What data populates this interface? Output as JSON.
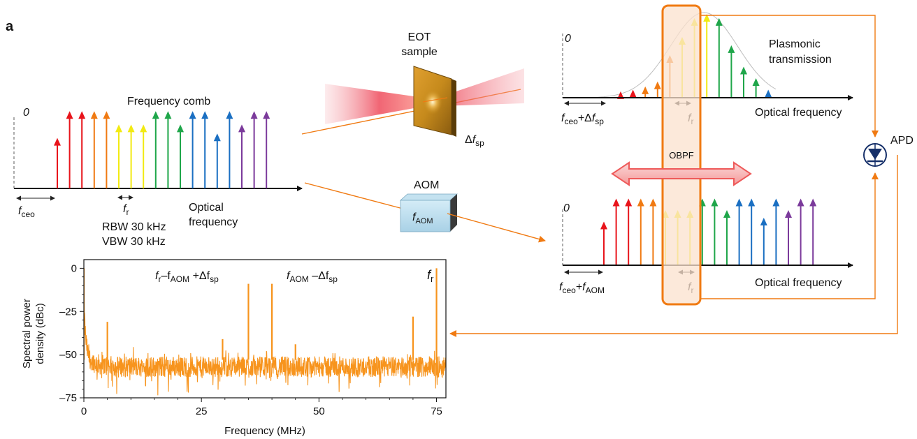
{
  "panel_label": "a",
  "comb": {
    "title": "Frequency comb",
    "zero": "0",
    "fceo_f": "f",
    "fceo_sub": "ceo",
    "fr_f": "f",
    "fr_sub": "r",
    "axis_line1": "Optical",
    "axis_line2": "frequency",
    "colors": [
      "#e8141b",
      "#e8141b",
      "#e8141b",
      "#f07a12",
      "#f07a12",
      "#f2ea12",
      "#f2ea12",
      "#f2ea12",
      "#1fa64a",
      "#1fa64a",
      "#1fa64a",
      "#1a6fc2",
      "#1a6fc2",
      "#1a6fc2",
      "#1a6fc2",
      "#7b3a9b",
      "#7b3a9b",
      "#7b3a9b"
    ],
    "levels": [
      0.55,
      0.85,
      0.85,
      0.85,
      0.85,
      0.7,
      0.7,
      0.7,
      0.85,
      0.85,
      0.7,
      0.85,
      0.85,
      0.6,
      0.85,
      0.7,
      0.85,
      0.85
    ]
  },
  "eot": {
    "line1": "EOT",
    "line2": "sample",
    "delta": "Δ",
    "f": "f",
    "sub": "sp"
  },
  "aom": {
    "title": "AOM",
    "f": "f",
    "sub": "AOM"
  },
  "plasmonic": {
    "zero": "0",
    "line1": "Plasmonic",
    "line2": "transmission",
    "axis": "Optical frequency",
    "fceo": "f",
    "fceo_sub": "ceo",
    "plus": "+Δ",
    "fsp": "f",
    "fsp_sub": "sp",
    "fr_f": "f",
    "fr_sub": "r",
    "levels": [
      0.06,
      0.08,
      0.12,
      0.18,
      0.5,
      0.72,
      0.95,
      1.0,
      0.95,
      0.62,
      0.36,
      0.22,
      0.08
    ],
    "colors": [
      "#e8141b",
      "#e8141b",
      "#f07a12",
      "#f07a12",
      "#f07a12",
      "#f2ea12",
      "#f2ea12",
      "#f2ea12",
      "#1fa64a",
      "#1fa64a",
      "#1fa64a",
      "#1fa64a",
      "#1a6fc2"
    ]
  },
  "obpf": "OBPF",
  "shifted": {
    "zero": "0",
    "axis": "Optical frequency",
    "fceo": "f",
    "fceo_sub": "ceo",
    "plus": "+",
    "faom": "f",
    "faom_sub": "AOM",
    "fr_f": "f",
    "fr_sub": "r"
  },
  "apd": "APD",
  "rbw": "RBW 30 kHz",
  "vbw": "VBW 30 kHz",
  "spectrum": {
    "ann1_f": "f",
    "ann1_sub1": "r",
    "ann1_mid": "–f",
    "ann1_sub2": "AOM",
    "ann1_plus": " +Δf",
    "ann1_sub3": "sp",
    "ann2_f": "f",
    "ann2_sub1": "AOM",
    "ann2_mid": " –Δf",
    "ann2_sub2": "sp",
    "ann3_f": "f",
    "ann3_sub": "r"
  },
  "chart_data": {
    "type": "line",
    "title": "",
    "xlabel": "Frequency (MHz)",
    "ylabel_line1": "Spectral power",
    "ylabel_line2": "density (dBc)",
    "xlim": [
      0,
      77
    ],
    "ylim": [
      -75,
      5
    ],
    "xticks": [
      0,
      25,
      50,
      75
    ],
    "yticks": [
      0,
      -25,
      -50,
      -75
    ],
    "xtick_labels": [
      "0",
      "25",
      "50",
      "75"
    ],
    "ytick_labels": [
      "0",
      "–25",
      "–50",
      "–75"
    ],
    "noise_floor_dBc": -57,
    "peaks": [
      {
        "x": 0,
        "y": 0
      },
      {
        "x": 5,
        "y": -31
      },
      {
        "x": 29.5,
        "y": -41
      },
      {
        "x": 35,
        "y": -9
      },
      {
        "x": 40,
        "y": -9
      },
      {
        "x": 45,
        "y": -44
      },
      {
        "x": 70,
        "y": -28
      },
      {
        "x": 75,
        "y": 0
      }
    ],
    "color": "#f7941d",
    "grid": false
  }
}
